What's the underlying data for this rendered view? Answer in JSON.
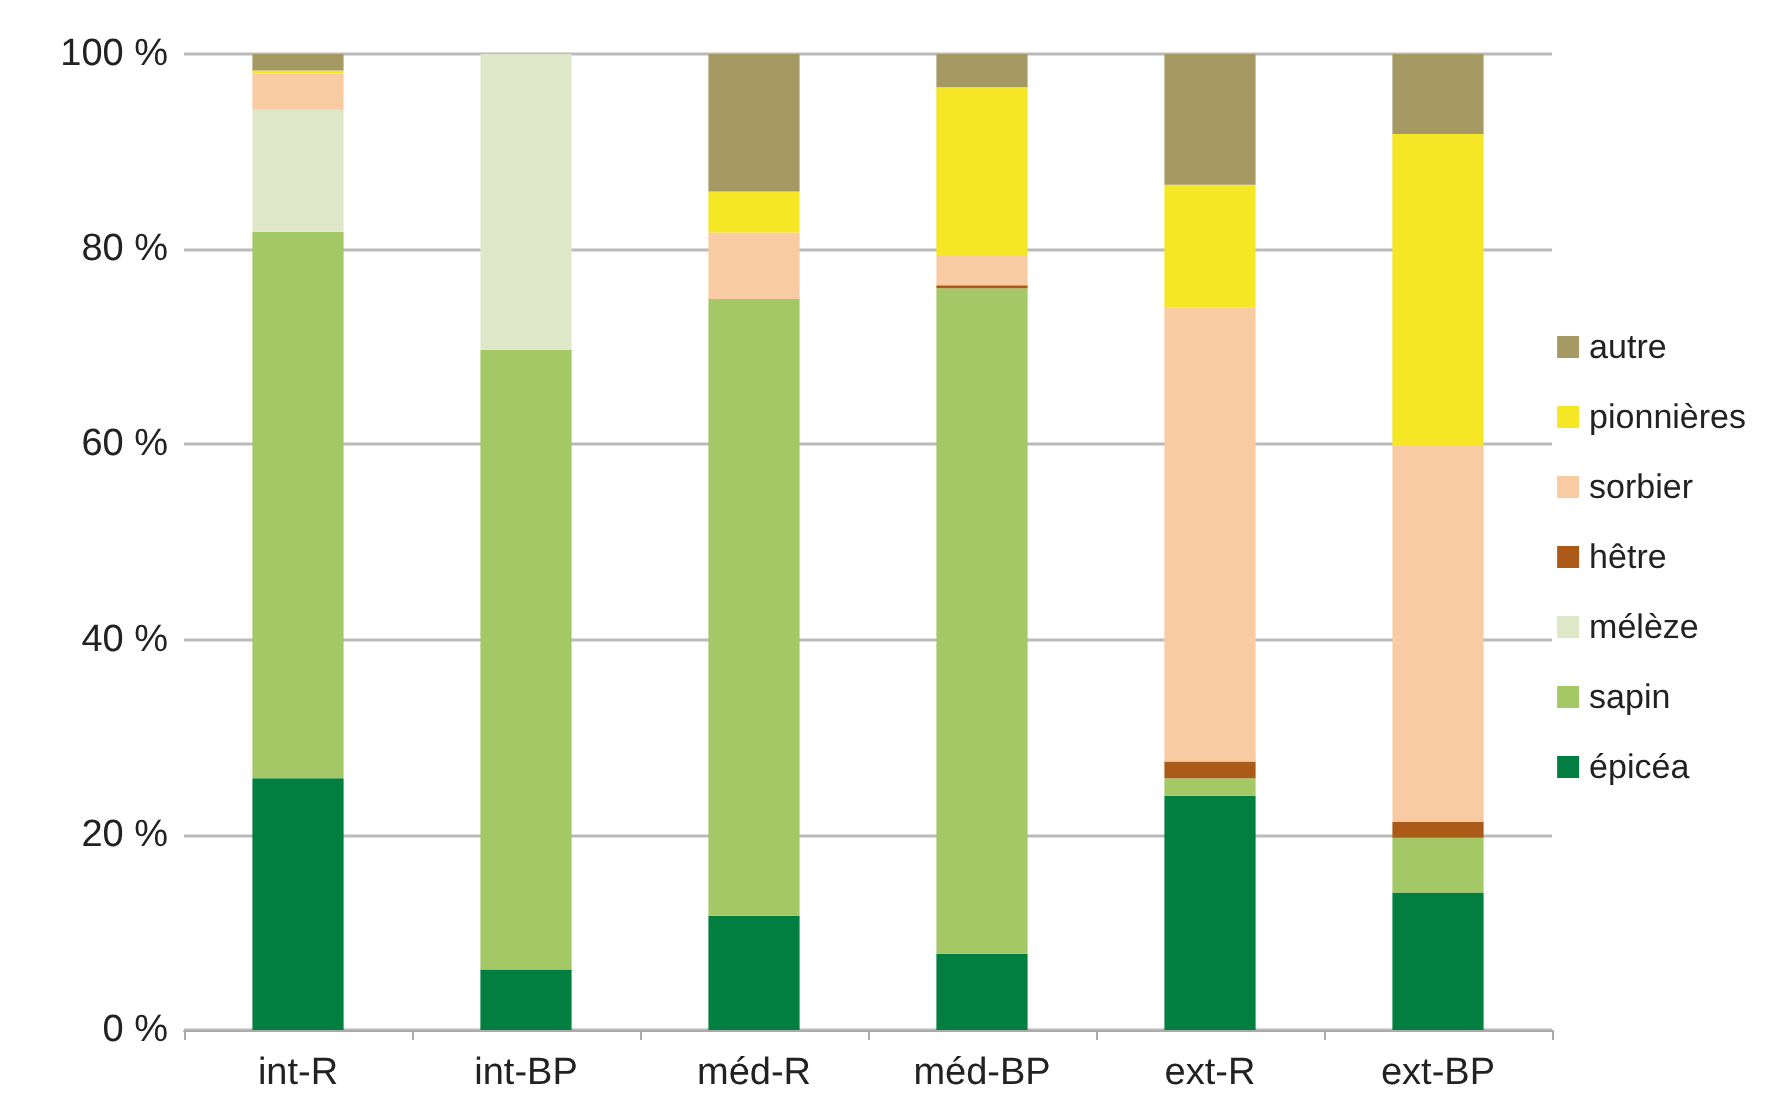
{
  "chart_data": {
    "type": "bar",
    "stacked": true,
    "categories": [
      "int-R",
      "int-BP",
      "méd-R",
      "méd-BP",
      "ext-R",
      "ext-BP"
    ],
    "series": [
      {
        "name": "épicéa",
        "color": "#027f40",
        "values": [
          25.8,
          6.2,
          11.7,
          7.8,
          24.0,
          14.1
        ]
      },
      {
        "name": "sapin",
        "color": "#a3c865",
        "values": [
          56.0,
          63.5,
          63.2,
          68.2,
          1.8,
          5.6
        ]
      },
      {
        "name": "mélèze",
        "color": "#dee8c9",
        "values": [
          12.5,
          30.3,
          0,
          0,
          0,
          0
        ]
      },
      {
        "name": "hêtre",
        "color": "#ab5a17",
        "values": [
          0,
          0,
          0,
          0.3,
          1.7,
          1.6
        ]
      },
      {
        "name": "sorbier",
        "color": "#f9cba2",
        "values": [
          3.7,
          0,
          6.8,
          3.1,
          46.5,
          38.6
        ]
      },
      {
        "name": "pionnières",
        "color": "#f6e726",
        "values": [
          0.3,
          0,
          4.2,
          17.2,
          12.6,
          31.9
        ]
      },
      {
        "name": "autre",
        "color": "#a59a64",
        "values": [
          1.7,
          0,
          14.1,
          3.4,
          13.4,
          8.2
        ]
      }
    ],
    "ylim": [
      0,
      100
    ],
    "yticks": [
      {
        "value": 0,
        "label": "0 %"
      },
      {
        "value": 20,
        "label": "20 %"
      },
      {
        "value": 40,
        "label": "40 %"
      },
      {
        "value": 60,
        "label": "60 %"
      },
      {
        "value": 80,
        "label": "80 %"
      },
      {
        "value": 100,
        "label": "100 %"
      }
    ],
    "grid": "y",
    "legend": "right"
  }
}
